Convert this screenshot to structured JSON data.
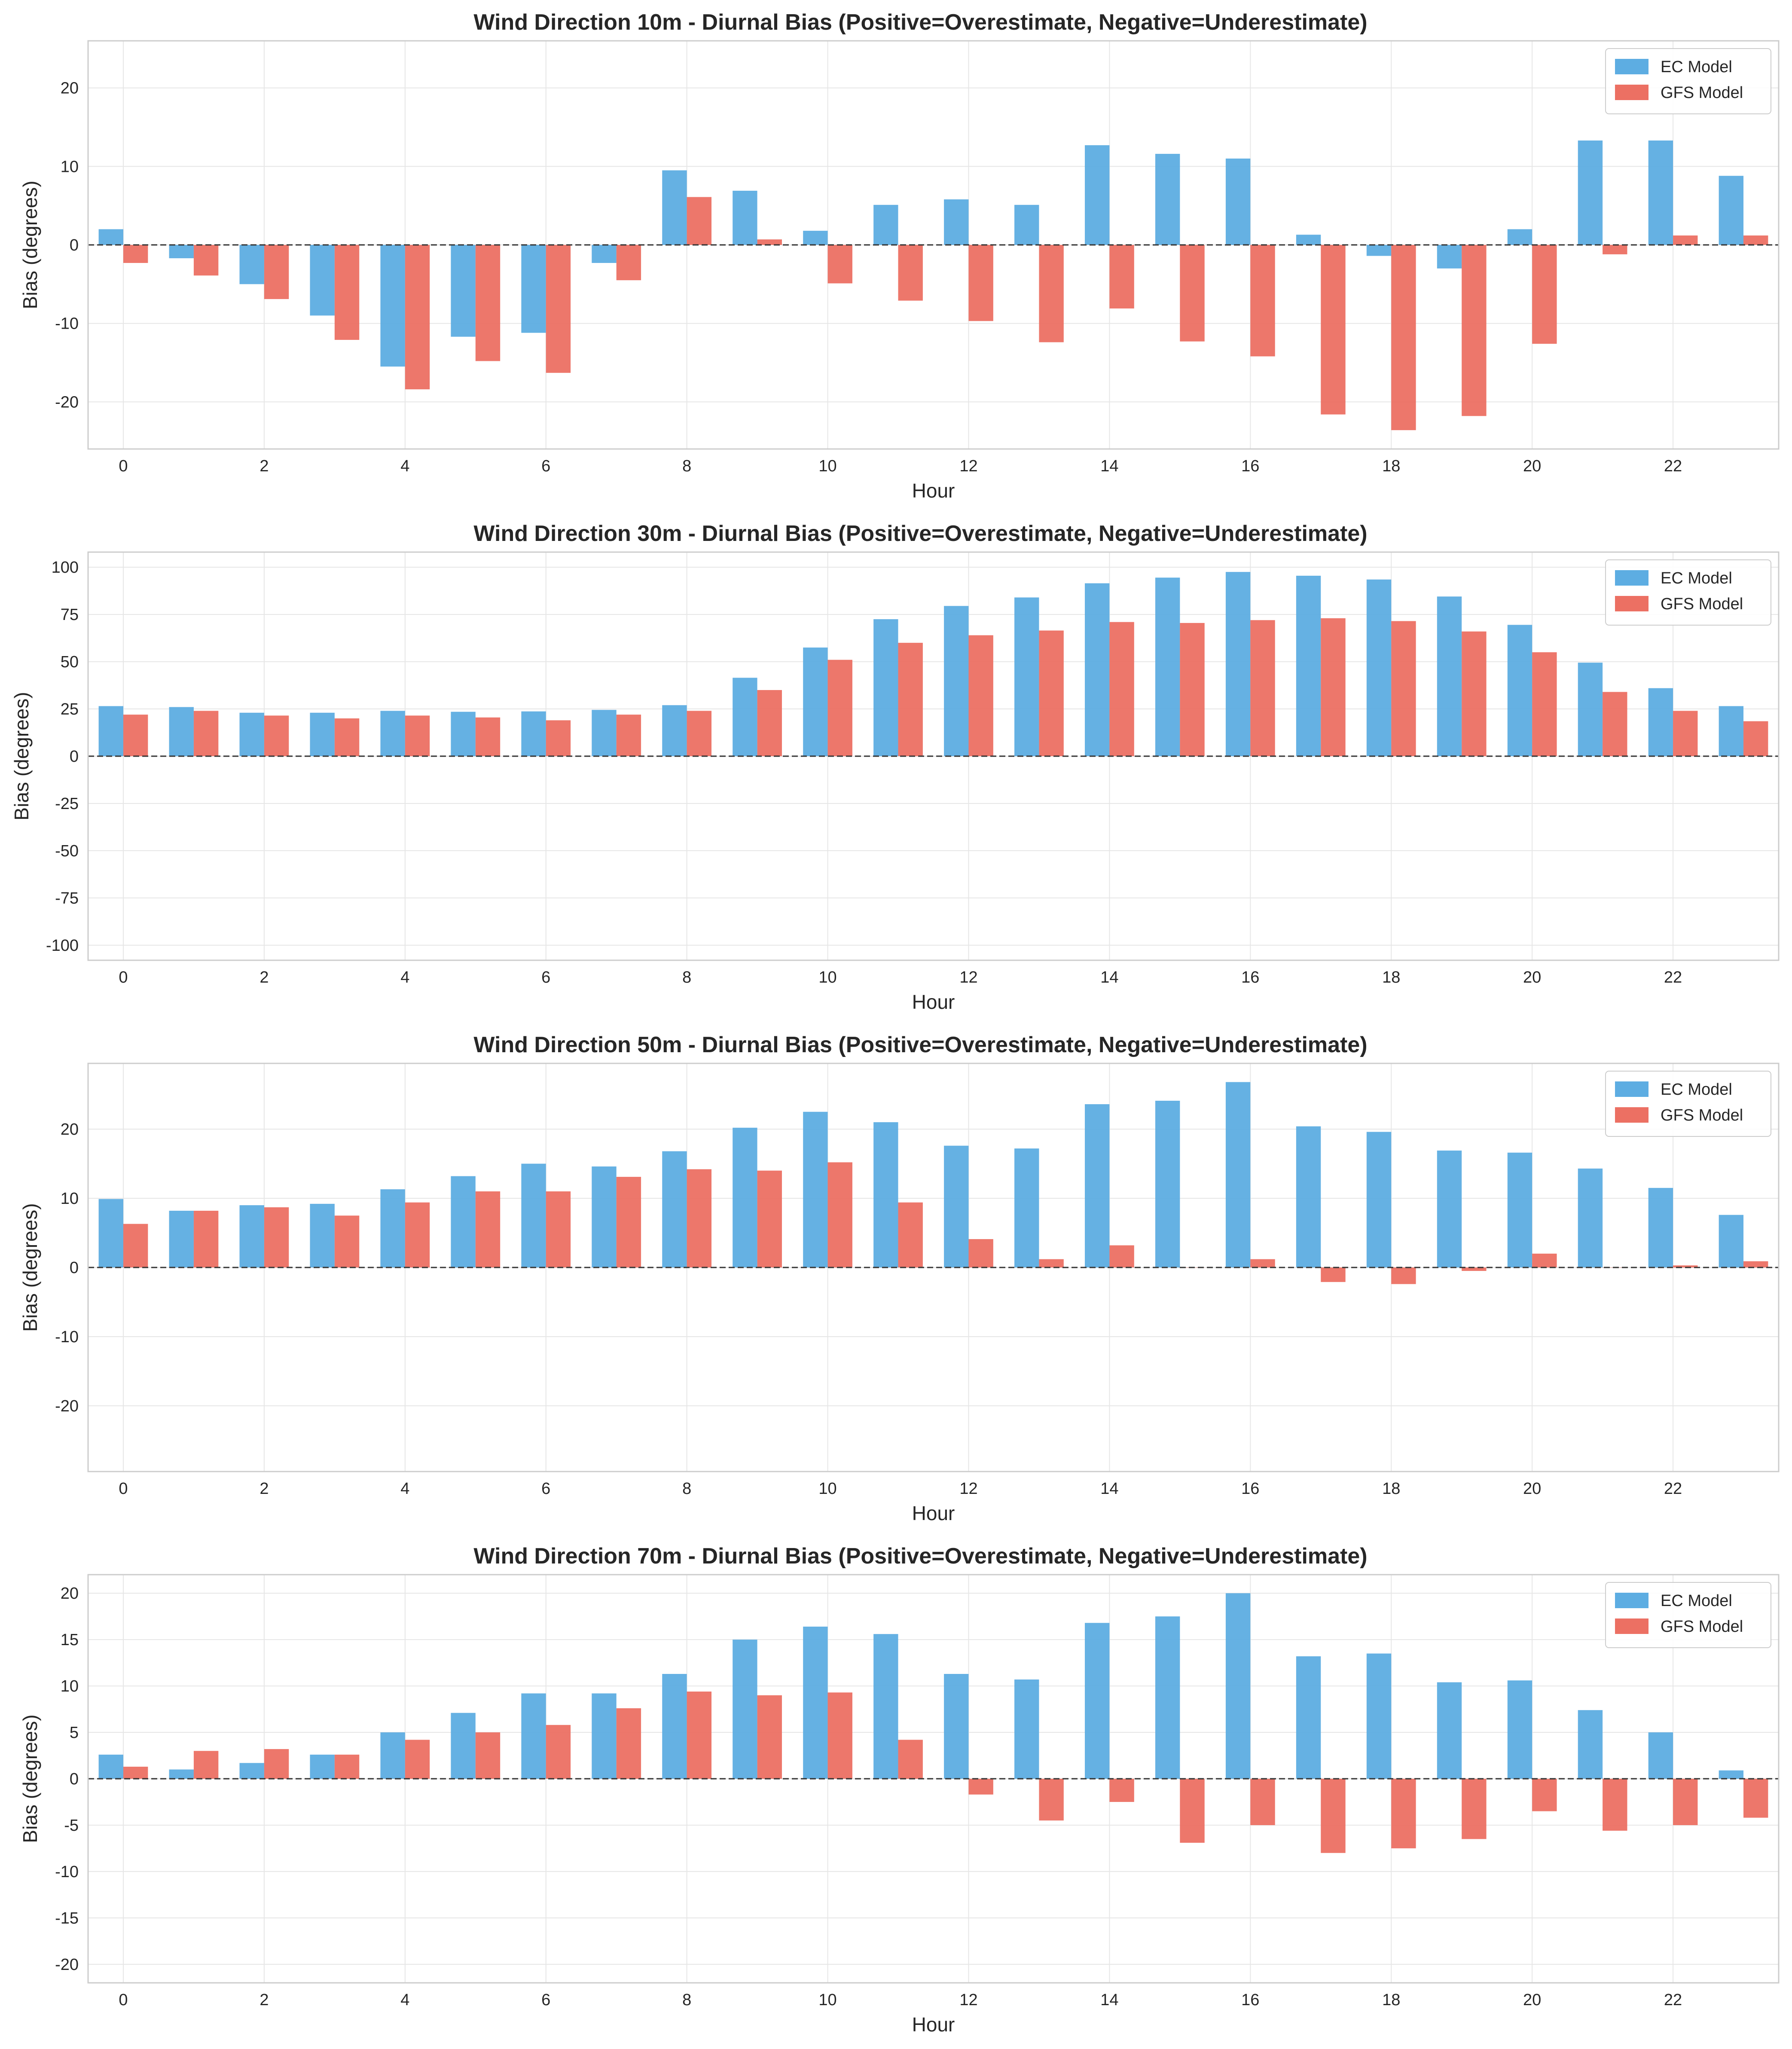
{
  "colors": {
    "ec": "#5DADE2",
    "gfs": "#EC7063",
    "grid": "#e6e6e6",
    "frame": "#cccccc",
    "zero_line": "#333333"
  },
  "chart_data": [
    {
      "type": "bar",
      "title": "Wind Direction 10m - Diurnal Bias (Positive=Overestimate, Negative=Underestimate)",
      "xlabel": "Hour",
      "ylabel": "Bias (degrees)",
      "ylim": [
        -26,
        26
      ],
      "yticks": [
        -20,
        -10,
        0,
        10,
        20
      ],
      "xticks": [
        0,
        2,
        4,
        6,
        8,
        10,
        12,
        14,
        16,
        18,
        20,
        22
      ],
      "x": [
        0,
        1,
        2,
        3,
        4,
        5,
        6,
        7,
        8,
        9,
        10,
        11,
        12,
        13,
        14,
        15,
        16,
        17,
        18,
        19,
        20,
        21,
        22,
        23
      ],
      "legend_position": "top-right",
      "grid": true,
      "series": [
        {
          "name": "EC Model",
          "color": "#5DADE2",
          "values": [
            2.0,
            -1.7,
            -5.0,
            -9.0,
            -15.5,
            -11.7,
            -11.2,
            -2.3,
            9.5,
            6.9,
            1.8,
            5.1,
            5.8,
            5.1,
            12.7,
            11.6,
            11.0,
            1.3,
            -1.4,
            -3.0,
            2.0,
            13.3,
            13.3,
            8.8
          ]
        },
        {
          "name": "GFS Model",
          "color": "#EC7063",
          "values": [
            -2.3,
            -3.9,
            -6.9,
            -12.1,
            -18.4,
            -14.8,
            -16.3,
            -4.5,
            6.1,
            0.7,
            -4.9,
            -7.1,
            -9.7,
            -12.4,
            -8.1,
            -12.3,
            -14.2,
            -21.6,
            -23.6,
            -21.8,
            -12.6,
            -1.2,
            1.2,
            1.2
          ]
        }
      ]
    },
    {
      "type": "bar",
      "title": "Wind Direction 30m - Diurnal Bias (Positive=Overestimate, Negative=Underestimate)",
      "xlabel": "Hour",
      "ylabel": "Bias (degrees)",
      "ylim": [
        -108,
        108
      ],
      "yticks": [
        -100,
        -75,
        -50,
        -25,
        0,
        25,
        50,
        75,
        100
      ],
      "xticks": [
        0,
        2,
        4,
        6,
        8,
        10,
        12,
        14,
        16,
        18,
        20,
        22
      ],
      "x": [
        0,
        1,
        2,
        3,
        4,
        5,
        6,
        7,
        8,
        9,
        10,
        11,
        12,
        13,
        14,
        15,
        16,
        17,
        18,
        19,
        20,
        21,
        22,
        23
      ],
      "legend_position": "top-right",
      "grid": true,
      "series": [
        {
          "name": "EC Model",
          "color": "#5DADE2",
          "values": [
            26.5,
            26.0,
            23.0,
            23.0,
            24.0,
            23.5,
            23.7,
            24.5,
            27.0,
            41.5,
            57.5,
            72.5,
            79.5,
            84.0,
            91.5,
            94.5,
            97.5,
            95.5,
            93.5,
            84.5,
            69.5,
            49.5,
            36.0,
            26.5
          ]
        },
        {
          "name": "GFS Model",
          "color": "#EC7063",
          "values": [
            22.0,
            24.0,
            21.5,
            20.0,
            21.5,
            20.5,
            19.0,
            22.0,
            24.0,
            35.0,
            51.0,
            60.0,
            64.0,
            66.5,
            71.0,
            70.5,
            72.0,
            73.0,
            71.5,
            66.0,
            55.0,
            34.0,
            24.0,
            18.5
          ]
        }
      ]
    },
    {
      "type": "bar",
      "title": "Wind Direction 50m - Diurnal Bias (Positive=Overestimate, Negative=Underestimate)",
      "xlabel": "Hour",
      "ylabel": "Bias (degrees)",
      "ylim": [
        -29.5,
        29.5
      ],
      "yticks": [
        -20,
        -10,
        0,
        10,
        20
      ],
      "xticks": [
        0,
        2,
        4,
        6,
        8,
        10,
        12,
        14,
        16,
        18,
        20,
        22
      ],
      "x": [
        0,
        1,
        2,
        3,
        4,
        5,
        6,
        7,
        8,
        9,
        10,
        11,
        12,
        13,
        14,
        15,
        16,
        17,
        18,
        19,
        20,
        21,
        22,
        23
      ],
      "legend_position": "top-right",
      "grid": true,
      "series": [
        {
          "name": "EC Model",
          "color": "#5DADE2",
          "values": [
            9.9,
            8.2,
            9.0,
            9.2,
            11.3,
            13.2,
            15.0,
            14.6,
            16.8,
            20.2,
            22.5,
            21.0,
            17.6,
            17.2,
            23.6,
            24.1,
            26.8,
            20.4,
            19.6,
            16.9,
            16.6,
            14.3,
            11.5,
            7.6
          ]
        },
        {
          "name": "GFS Model",
          "color": "#EC7063",
          "values": [
            6.3,
            8.2,
            8.7,
            7.5,
            9.4,
            11.0,
            11.0,
            13.1,
            14.2,
            14.0,
            15.2,
            9.4,
            4.1,
            1.2,
            3.2,
            0.0,
            1.2,
            -2.1,
            -2.4,
            -0.5,
            2.0,
            0.0,
            0.3,
            0.9
          ]
        }
      ]
    },
    {
      "type": "bar",
      "title": "Wind Direction 70m - Diurnal Bias (Positive=Overestimate, Negative=Underestimate)",
      "xlabel": "Hour",
      "ylabel": "Bias (degrees)",
      "ylim": [
        -22,
        22
      ],
      "yticks": [
        -20,
        -15,
        -10,
        -5,
        0,
        5,
        10,
        15,
        20
      ],
      "xticks": [
        0,
        2,
        4,
        6,
        8,
        10,
        12,
        14,
        16,
        18,
        20,
        22
      ],
      "x": [
        0,
        1,
        2,
        3,
        4,
        5,
        6,
        7,
        8,
        9,
        10,
        11,
        12,
        13,
        14,
        15,
        16,
        17,
        18,
        19,
        20,
        21,
        22,
        23
      ],
      "legend_position": "top-right",
      "grid": true,
      "series": [
        {
          "name": "EC Model",
          "color": "#5DADE2",
          "values": [
            2.6,
            1.0,
            1.7,
            2.6,
            5.0,
            7.1,
            9.2,
            9.2,
            11.3,
            15.0,
            16.4,
            15.6,
            11.3,
            10.7,
            16.8,
            17.5,
            20.0,
            13.2,
            13.5,
            10.4,
            10.6,
            7.4,
            5.0,
            0.9
          ]
        },
        {
          "name": "GFS Model",
          "color": "#EC7063",
          "values": [
            1.3,
            3.0,
            3.2,
            2.6,
            4.2,
            5.0,
            5.8,
            7.6,
            9.4,
            9.0,
            9.3,
            4.2,
            -1.7,
            -4.5,
            -2.5,
            -6.9,
            -5.0,
            -8.0,
            -7.5,
            -6.5,
            -3.5,
            -5.6,
            -5.0,
            -4.2
          ]
        }
      ]
    }
  ]
}
